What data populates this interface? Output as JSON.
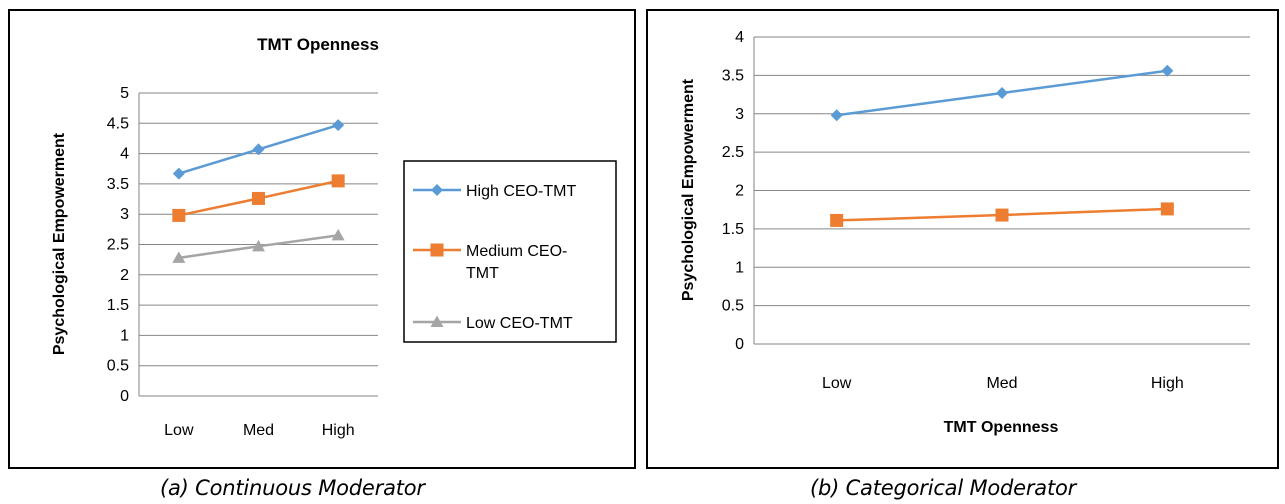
{
  "colors": {
    "high": "#5b9bd5",
    "medium": "#ed7d31",
    "low": "#a5a5a5",
    "grid": "#868686"
  },
  "captions": {
    "a": "(a) Continuous Moderator",
    "b": "(b) Categorical Moderator"
  },
  "chart_data": [
    {
      "type": "line",
      "title": "TMT Openness",
      "ylabel": "Psychological Empowerment",
      "xlabel": "",
      "categories": [
        "Low",
        "Med",
        "High"
      ],
      "ylim": [
        0,
        5
      ],
      "yticks": [
        "0",
        "0.5",
        "1",
        "1.5",
        "2",
        "2.5",
        "3",
        "3.5",
        "4",
        "4.5",
        "5"
      ],
      "grid": true,
      "legend": "right",
      "series": [
        {
          "name": "High CEO-TMT",
          "name_lines": [
            "High CEO-TMT"
          ],
          "values": [
            3.67,
            4.07,
            4.47
          ],
          "marker": "diamond",
          "color_key": "high"
        },
        {
          "name": "Medium CEO-TMT",
          "name_lines": [
            "Medium CEO-",
            "TMT"
          ],
          "values": [
            2.98,
            3.26,
            3.55
          ],
          "marker": "square",
          "color_key": "medium"
        },
        {
          "name": "Low CEO-TMT",
          "name_lines": [
            "Low CEO-TMT"
          ],
          "values": [
            2.28,
            2.47,
            2.65
          ],
          "marker": "triangle",
          "color_key": "low"
        }
      ]
    },
    {
      "type": "line",
      "title": "",
      "ylabel": "Psychological Empowerment",
      "xlabel": "TMT Openness",
      "categories": [
        "Low",
        "Med",
        "High"
      ],
      "ylim": [
        0,
        4
      ],
      "yticks": [
        "0",
        "0.5",
        "1",
        "1.5",
        "2",
        "2.5",
        "3",
        "3.5",
        "4"
      ],
      "grid": true,
      "legend": "none",
      "series": [
        {
          "values": [
            2.98,
            3.27,
            3.56
          ],
          "marker": "diamond",
          "color_key": "high"
        },
        {
          "values": [
            1.61,
            1.68,
            1.76
          ],
          "marker": "square",
          "color_key": "medium"
        }
      ]
    }
  ]
}
